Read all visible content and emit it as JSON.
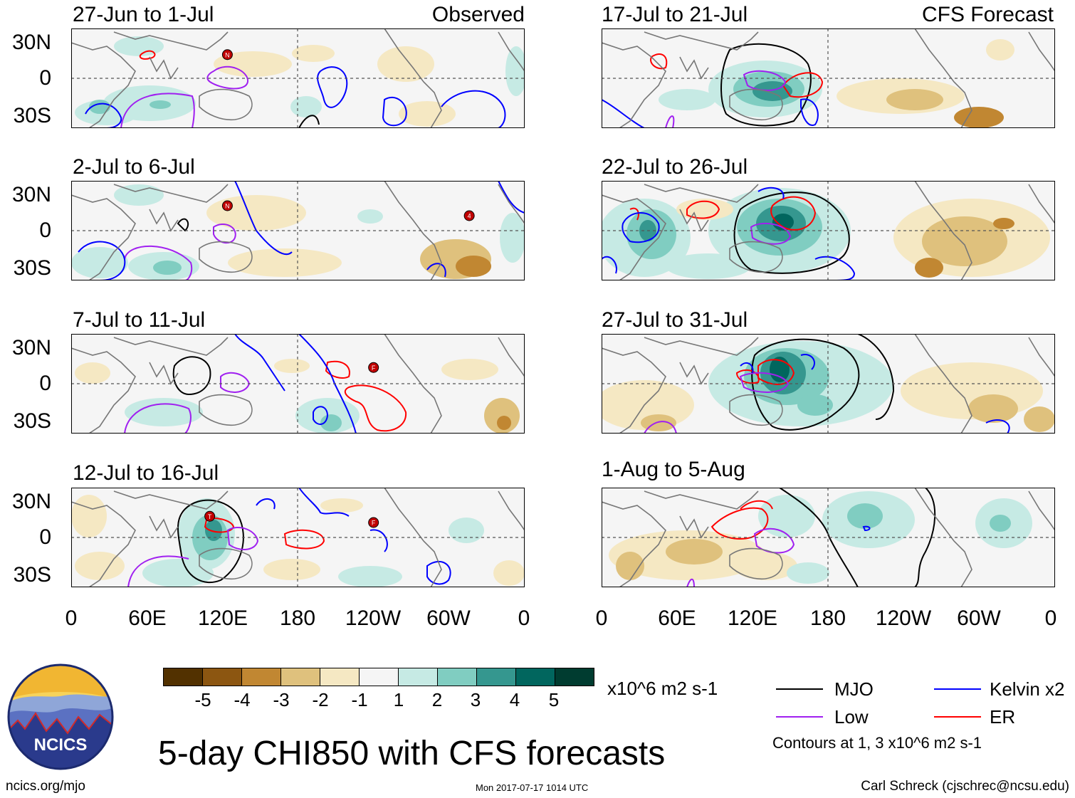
{
  "panels_left": [
    {
      "title": "27-Jun to 1-Jul",
      "right_label": "Observed"
    },
    {
      "title": "2-Jul to 6-Jul",
      "right_label": ""
    },
    {
      "title": "7-Jul to 11-Jul",
      "right_label": ""
    },
    {
      "title": "12-Jul to 16-Jul",
      "right_label": ""
    }
  ],
  "panels_right": [
    {
      "title": "17-Jul to 21-Jul",
      "right_label": "CFS Forecast"
    },
    {
      "title": "22-Jul to 26-Jul",
      "right_label": ""
    },
    {
      "title": "27-Jul to 31-Jul",
      "right_label": ""
    },
    {
      "title": "1-Aug to 5-Aug",
      "right_label": ""
    }
  ],
  "lat_labels": [
    "30N",
    "0",
    "30S"
  ],
  "lon_labels": [
    "0",
    "60E",
    "120E",
    "180",
    "120W",
    "60W",
    "0"
  ],
  "colorbar": {
    "colors": [
      "#523100",
      "#8c5611",
      "#c18732",
      "#dfc17d",
      "#f5e8c3",
      "#f5f5f5",
      "#c6eae4",
      "#80cdc1",
      "#35978f",
      "#01665e",
      "#003c30"
    ],
    "ticks": [
      "-5",
      "-4",
      "-3",
      "-2",
      "-1",
      "1",
      "2",
      "3",
      "4",
      "5"
    ],
    "units": "x10^6 m2 s-1"
  },
  "legend": {
    "mjo": {
      "label": "MJO",
      "color": "#000000"
    },
    "kelvin": {
      "label": "Kelvin x2",
      "color": "#0000ff"
    },
    "low": {
      "label": "Low",
      "color": "#a020f0"
    },
    "er": {
      "label": "ER",
      "color": "#ff0000"
    },
    "note": "Contours at 1, 3 x10^6 m2 s-1"
  },
  "logo_text": "NCICS",
  "main_title": "5-day CHI850 with CFS forecasts",
  "footer": {
    "left": "ncics.org/mjo",
    "center": "Mon 2017-07-17 1014 UTC",
    "right": "Carl Schreck (cjschrec@ncsu.edu)"
  },
  "storm_markers": [
    {
      "panel": "L0",
      "lon": 124,
      "lat": 19,
      "label": "N"
    },
    {
      "panel": "L1",
      "lon": 124,
      "lat": 20,
      "label": "N"
    },
    {
      "panel": "L1",
      "lon": 316,
      "lat": 12,
      "label": "4"
    },
    {
      "panel": "L2",
      "lon": 240,
      "lat": 13,
      "label": "F"
    },
    {
      "panel": "L3",
      "lon": 110,
      "lat": 17,
      "label": "T"
    },
    {
      "panel": "L3",
      "lon": 240,
      "lat": 12,
      "label": "F"
    }
  ]
}
